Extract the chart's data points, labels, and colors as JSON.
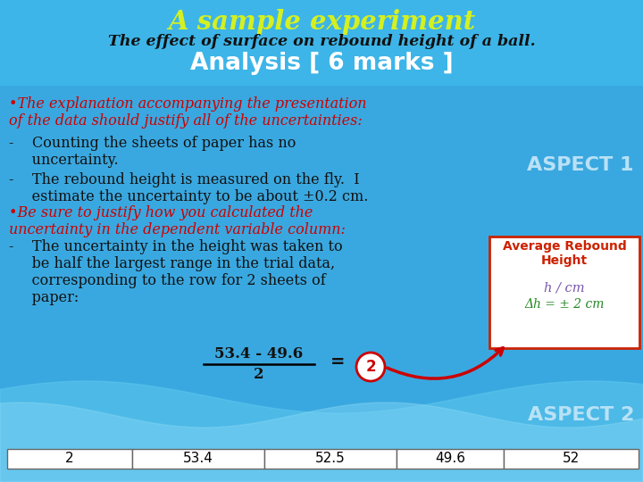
{
  "title": "A sample experiment",
  "subtitle": "The effect of surface on rebound height of a ball.",
  "heading": "Analysis [ 6 marks ]",
  "bg_color": "#3aa8e0",
  "header_bg": "#3aa8e0",
  "title_color": "#d4f020",
  "subtitle_color": "#111111",
  "heading_color": "#ffffff",
  "bullet_color": "#cc0000",
  "body_color": "#111111",
  "aspect_color": "#c8e8f8",
  "green_color": "#228822",
  "purple_color": "#7755aa",
  "box_title_color": "#cc2200",
  "bullet1_line1": "•The explanation accompanying the presentation",
  "bullet1_line2": "of the data should justify all of the uncertainties:",
  "dash1_line1": "-    Counting the sheets of paper has no",
  "dash1_line2": "     uncertainty.",
  "dash2_line1": "-    The rebound height is measured on the fly.  I",
  "dash2_line2": "     estimate the uncertainty to be about ±0.2 cm.",
  "bullet2_line1": "•Be sure to justify how you calculated the",
  "bullet2_line2": "uncertainty in the dependent variable column:",
  "dash3_line1": "-    The uncertainty in the height was taken to",
  "dash3_line2": "     be half the largest range in the trial data,",
  "dash3_line3": "     corresponding to the row for 2 sheets of",
  "dash3_line4": "     paper:",
  "fraction_num": "53.4 - 49.6",
  "fraction_den": "2",
  "aspect1": "ASPECT 1",
  "aspect2": "ASPECT 2",
  "table_row": [
    "2",
    "53.4",
    "52.5",
    "49.6",
    "52"
  ],
  "box_title": "Average Rebound\nHeight",
  "box_h": "h / cm",
  "box_delta": "Δh = ± 2 cm",
  "wave_color1": "#5bbde8",
  "wave_color2": "#7acfef"
}
